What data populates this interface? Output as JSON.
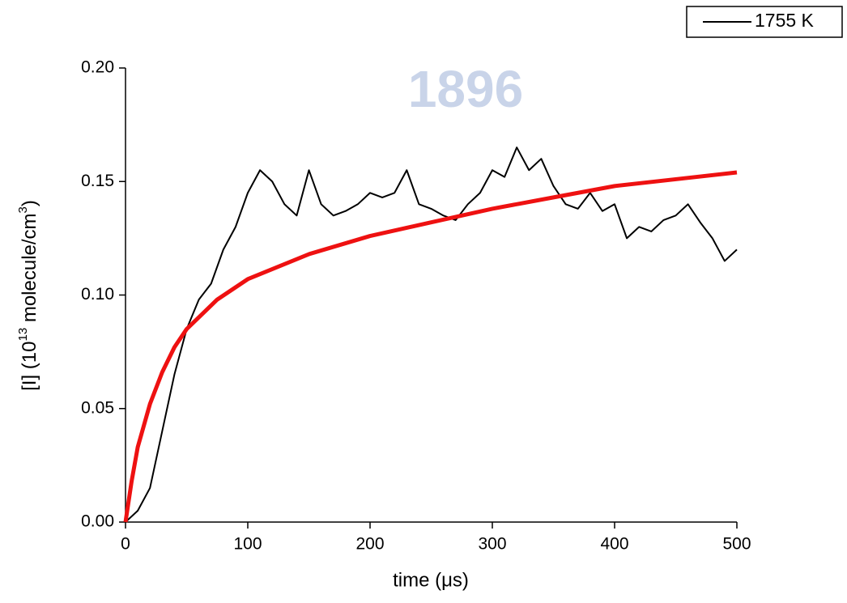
{
  "watermark": "1896",
  "chart_data": {
    "type": "line",
    "xlabel": "time (μs)",
    "ylabel": [
      "[I] (10",
      "13",
      " molecule/cm",
      "3",
      ")"
    ],
    "xlim": [
      0,
      500
    ],
    "xticks": [
      0,
      100,
      200,
      300,
      400,
      500
    ],
    "ylim": [
      0,
      0.2
    ],
    "yticks": [
      {
        "value": 0,
        "label": "0.00"
      },
      {
        "value": 0.05,
        "label": "0.05"
      },
      {
        "value": 0.1,
        "label": "0.10"
      },
      {
        "value": 0.15,
        "label": "0.15"
      },
      {
        "value": 0.2,
        "label": "0.20"
      }
    ],
    "legend": "top-right",
    "series": [
      {
        "name": "1755 K",
        "color": "#000000",
        "width": 2,
        "x": [
          0,
          10,
          20,
          30,
          40,
          50,
          60,
          70,
          80,
          90,
          100,
          110,
          120,
          130,
          140,
          150,
          160,
          170,
          180,
          190,
          200,
          210,
          220,
          230,
          240,
          250,
          260,
          270,
          280,
          290,
          300,
          310,
          320,
          330,
          340,
          350,
          360,
          370,
          380,
          390,
          400,
          410,
          420,
          430,
          440,
          450,
          460,
          470,
          480,
          490,
          500
        ],
        "values": [
          0,
          0.005,
          0.015,
          0.04,
          0.065,
          0.085,
          0.098,
          0.105,
          0.12,
          0.13,
          0.145,
          0.155,
          0.15,
          0.14,
          0.135,
          0.155,
          0.14,
          0.135,
          0.137,
          0.14,
          0.145,
          0.143,
          0.145,
          0.155,
          0.14,
          0.138,
          0.135,
          0.133,
          0.14,
          0.145,
          0.155,
          0.152,
          0.165,
          0.155,
          0.16,
          0.148,
          0.14,
          0.138,
          0.145,
          0.137,
          0.14,
          0.125,
          0.13,
          0.128,
          0.133,
          0.135,
          0.14,
          0.132,
          0.125,
          0.115,
          0.12
        ]
      },
      {
        "color": "#ee1111",
        "width": 5,
        "x": [
          0,
          5,
          10,
          20,
          30,
          40,
          50,
          75,
          100,
          150,
          200,
          250,
          300,
          350,
          400,
          450,
          500
        ],
        "values": [
          0,
          0.018,
          0.033,
          0.052,
          0.066,
          0.077,
          0.085,
          0.098,
          0.107,
          0.118,
          0.126,
          0.132,
          0.138,
          0.143,
          0.148,
          0.151,
          0.154
        ]
      }
    ]
  }
}
